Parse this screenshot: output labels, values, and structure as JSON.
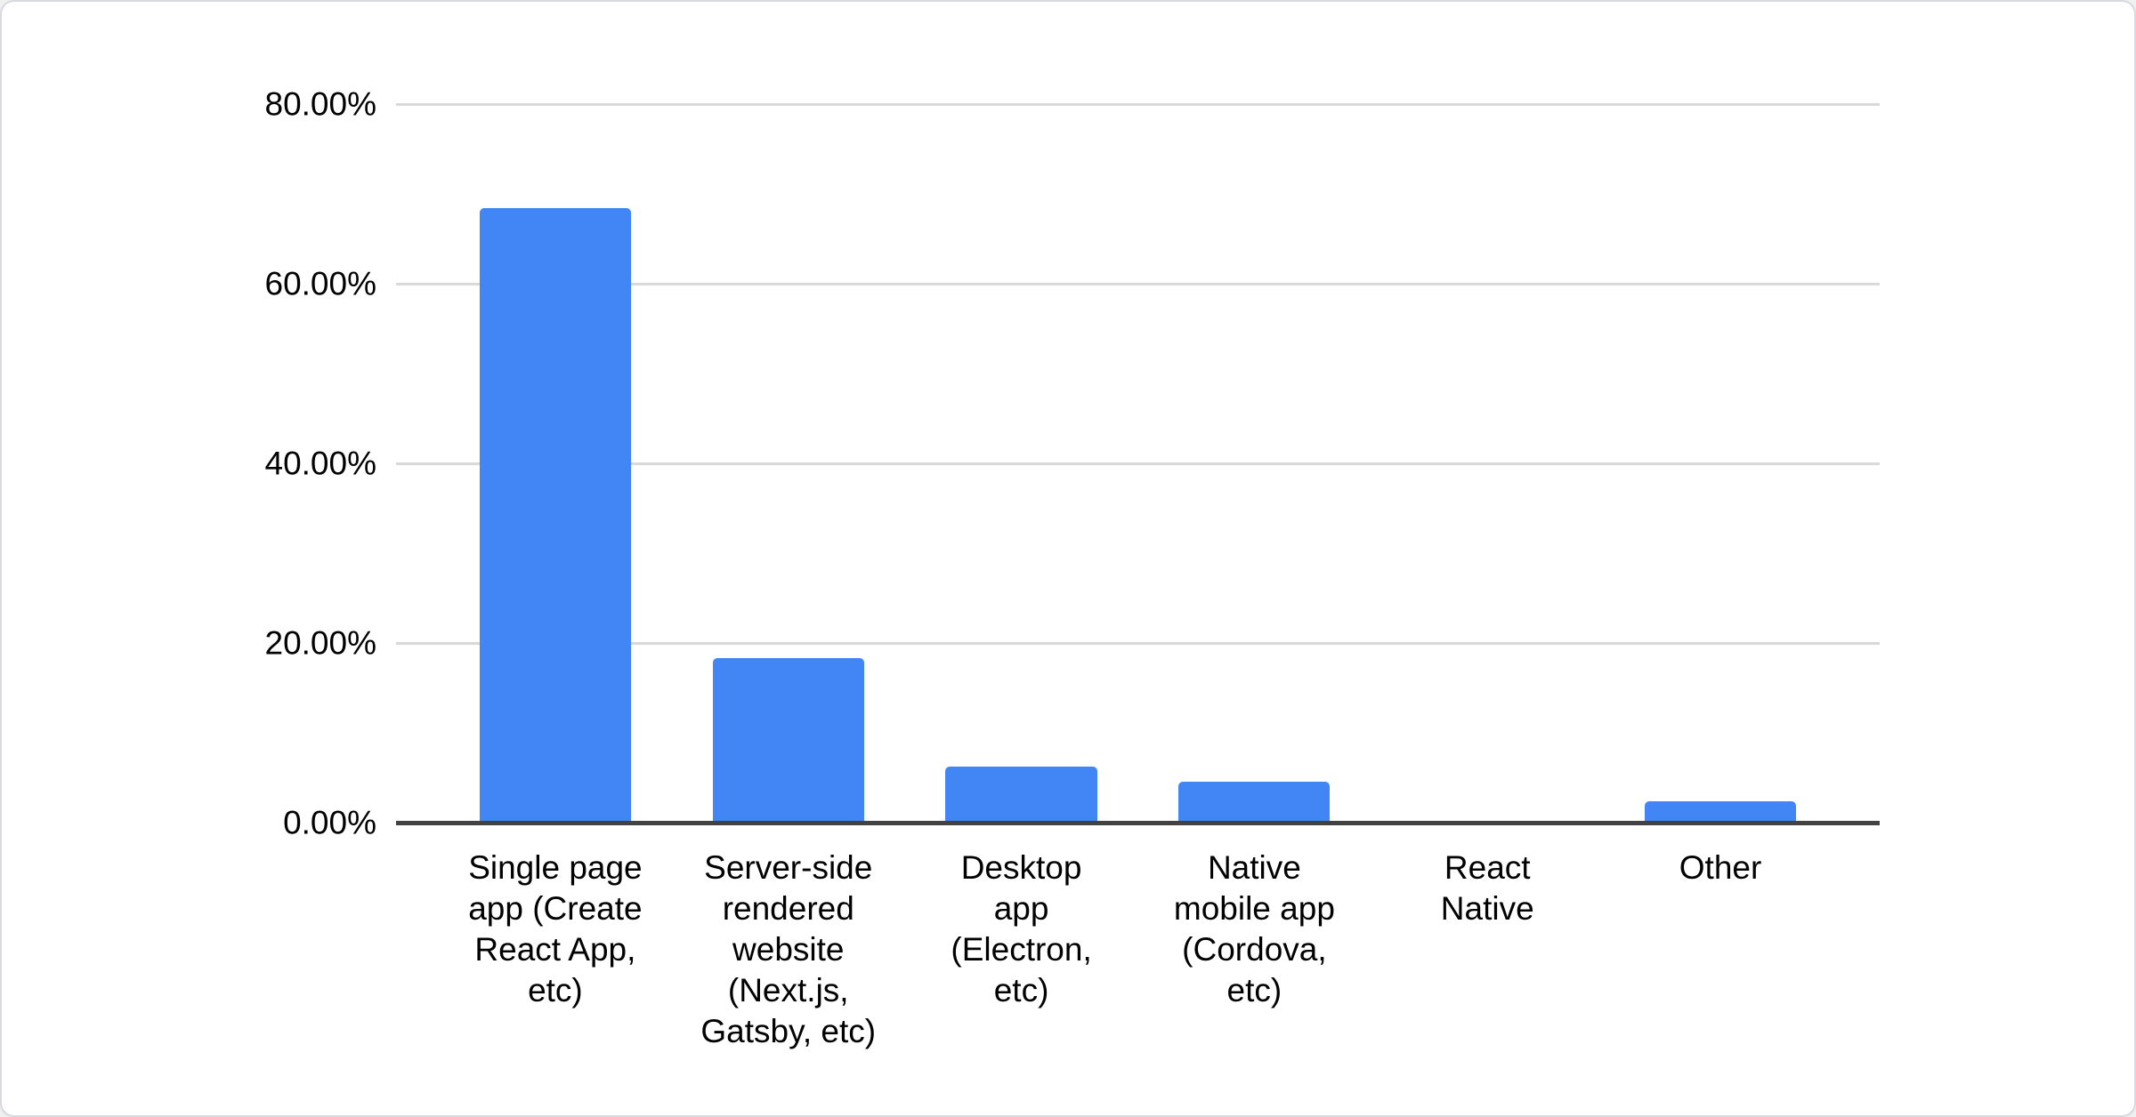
{
  "chart_data": {
    "type": "bar",
    "title": "",
    "xlabel": "",
    "ylabel": "",
    "categories": [
      "Single page\napp (Create\nReact App,\netc)",
      "Server-side\nrendered\nwebsite\n(Next.js,\nGatsby, etc)",
      "Desktop\napp\n(Electron,\netc)",
      "Native\nmobile app\n(Cordova,\netc)",
      "React\nNative",
      "Other"
    ],
    "values": [
      68.4,
      18.3,
      6.2,
      4.6,
      0,
      2.4
    ],
    "ylim": [
      0,
      80
    ],
    "grid": true,
    "legend": "none",
    "y_ticks": [
      {
        "label": "80.00%",
        "value": 80
      },
      {
        "label": "60.00%",
        "value": 60
      },
      {
        "label": "40.00%",
        "value": 40
      },
      {
        "label": "20.00%",
        "value": 20
      },
      {
        "label": "0.00%",
        "value": 0
      }
    ],
    "colors": {
      "bar": "#4285f4",
      "gridline": "#d9d9d9",
      "axis_line": "#424242",
      "text": "#000000",
      "card_border": "#d7dade",
      "card_background": "#ffffff"
    }
  }
}
